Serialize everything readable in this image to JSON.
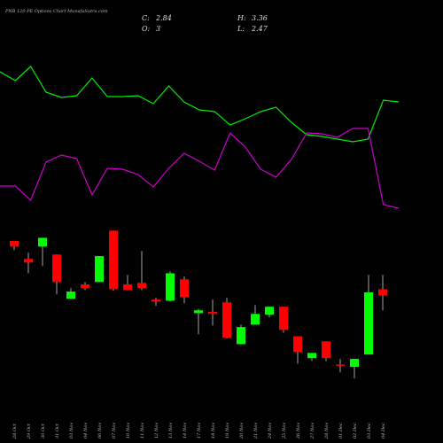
{
  "chart_data": {
    "type": "candlestick",
    "title": "PNB 120 PE Options Chart MunafaSutra.com",
    "ohlc_labels": [
      {
        "label": "C:",
        "value": 2.84
      },
      {
        "label": "H:",
        "value": 3.36
      },
      {
        "label": "O:",
        "value": 3.0
      },
      {
        "label": "L:",
        "value": 2.47
      }
    ],
    "categories": [
      "28 Oct",
      "29 Oct",
      "30 Oct",
      "31 Oct",
      "03 Nov",
      "04 Nov",
      "06 Nov",
      "07 Nov",
      "10 Nov",
      "11 Nov",
      "12 Nov",
      "13 Nov",
      "14 Nov",
      "17 Nov",
      "18 Nov",
      "19 Nov",
      "20 Nov",
      "21 Nov",
      "24 Nov",
      "25 Nov",
      "26 Nov",
      "27 Nov",
      "28 Nov",
      "01 Dec",
      "02 Dec",
      "03 Dec",
      "04 Dec"
    ],
    "open": [
      4.21,
      3.76,
      4.07,
      3.87,
      2.76,
      3.12,
      3.18,
      4.47,
      3.12,
      3.16,
      2.74,
      2.71,
      3.25,
      2.4,
      2.43,
      2.67,
      1.62,
      2.11,
      2.36,
      2.56,
      1.82,
      1.27,
      1.69,
      1.11,
      1.05,
      1.36,
      3.0
    ],
    "high": [
      4.21,
      3.92,
      4.29,
      3.87,
      3.03,
      3.18,
      3.83,
      4.47,
      3.36,
      3.96,
      2.78,
      3.45,
      3.32,
      2.51,
      2.74,
      2.78,
      2.11,
      2.6,
      2.56,
      2.56,
      1.82,
      1.4,
      1.69,
      1.25,
      1.25,
      3.36,
      3.36
    ],
    "low": [
      3.98,
      3.4,
      3.58,
      2.87,
      2.76,
      2.98,
      3.18,
      2.96,
      2.98,
      2.98,
      2.58,
      2.69,
      2.65,
      1.87,
      2.09,
      1.76,
      1.62,
      2.11,
      2.29,
      1.91,
      1.13,
      1.2,
      1.2,
      0.91,
      0.76,
      1.36,
      2.47
    ],
    "close": [
      4.07,
      3.67,
      4.29,
      3.18,
      2.94,
      3.03,
      3.83,
      3.0,
      2.98,
      3.03,
      2.69,
      3.4,
      2.8,
      2.47,
      2.38,
      1.78,
      2.05,
      2.38,
      2.56,
      1.98,
      1.42,
      1.4,
      1.27,
      1.09,
      1.25,
      2.92,
      2.84
    ],
    "ylim": [
      0.5,
      4.7
    ],
    "up_color": "#00ff00",
    "down_color": "#ff0000",
    "wick_color": "#cccccc",
    "y2lim": [
      0,
      190
    ],
    "lines": [
      {
        "color": "#00ee00",
        "values": [
          169,
          159,
          175,
          146,
          140,
          142,
          162,
          141,
          141,
          142,
          133,
          153,
          135,
          126,
          124,
          109,
          116,
          124,
          129,
          112,
          98,
          96,
          93,
          90,
          93,
          137,
          135
        ]
      },
      {
        "color": "#cc00cc",
        "values": [
          40,
          40,
          24,
          67,
          75,
          71,
          30,
          60,
          59,
          53,
          39,
          60,
          77,
          68,
          58,
          100,
          84,
          59,
          50,
          70,
          100,
          99,
          95,
          105,
          105,
          19,
          15
        ]
      }
    ]
  }
}
